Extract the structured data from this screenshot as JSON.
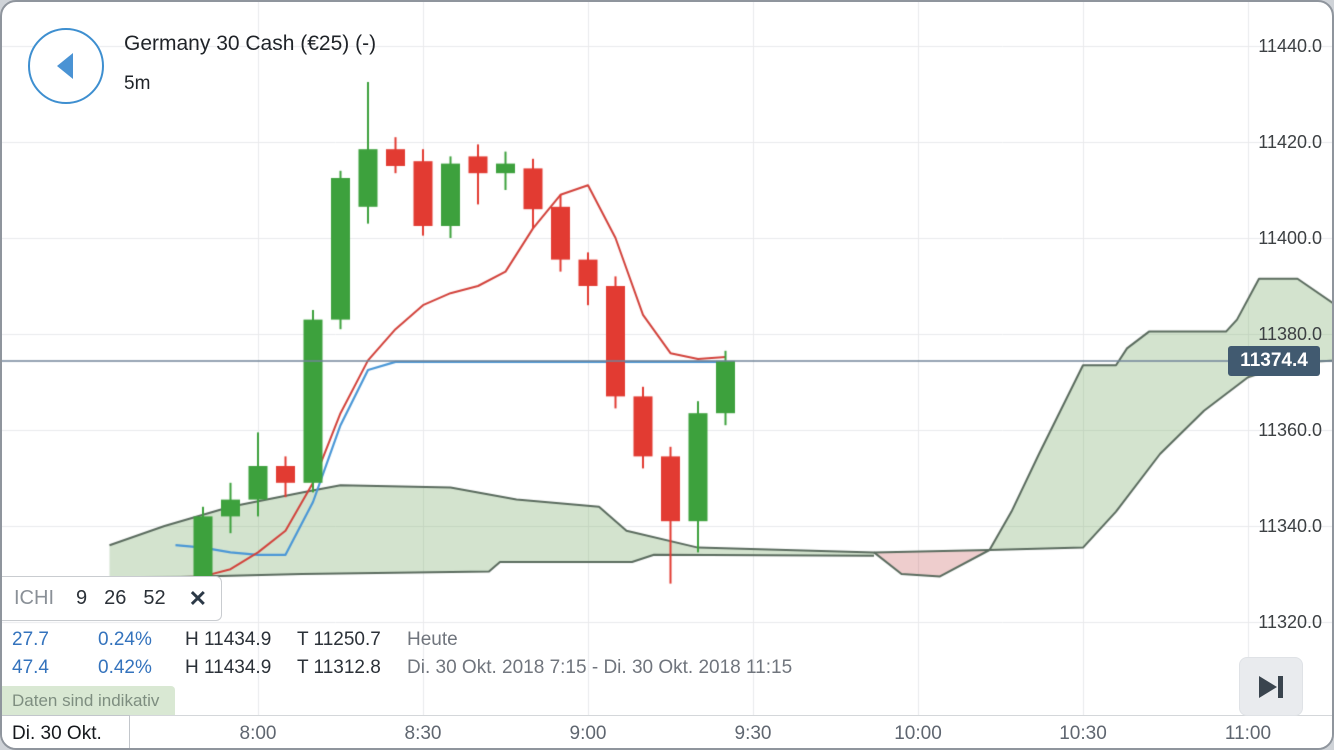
{
  "header": {
    "title": "Germany 30 Cash (€25) (-)",
    "timeframe": "5m"
  },
  "legend": {
    "indicator": "ICHI",
    "params": [
      "9",
      "26",
      "52"
    ],
    "close_label": "✕"
  },
  "stats": {
    "rows": [
      {
        "change": "27.7",
        "change_pct": "0.24%",
        "high": "H 11434.9",
        "low": "T 11250.7",
        "period": "Heute"
      },
      {
        "change": "47.4",
        "change_pct": "0.42%",
        "high": "H 11434.9",
        "low": "T 11312.8",
        "period": "Di. 30 Okt. 2018 7:15 - Di. 30 Okt. 2018 11:15"
      }
    ]
  },
  "disclaimer": "Daten sind indikativ",
  "price_axis": {
    "labels": [
      "11440.0",
      "11420.0",
      "11400.0",
      "11380.0",
      "11360.0",
      "11340.0",
      "11320.0"
    ]
  },
  "time_axis": {
    "date_label": "Di. 30 Okt.",
    "labels": [
      "8:00",
      "8:30",
      "9:00",
      "9:30",
      "10:00",
      "10:30",
      "11:00"
    ]
  },
  "current_price": {
    "label": "11374.4"
  },
  "chart_data": {
    "type": "candlestick",
    "title": "Germany 30 Cash (€25)",
    "interval": "5m",
    "current_price": 11374.4,
    "price_ticks": [
      11440,
      11420,
      11400,
      11380,
      11360,
      11340,
      11320
    ],
    "time_ticks": [
      "8:00",
      "8:30",
      "9:00",
      "9:30",
      "10:00",
      "10:30",
      "11:00"
    ],
    "candles": [
      {
        "t": "7:50",
        "o": 11326.5,
        "h": 11344.0,
        "l": 11323.5,
        "c": 11342.0
      },
      {
        "t": "7:55",
        "o": 11342.0,
        "h": 11349.0,
        "l": 11338.5,
        "c": 11345.5
      },
      {
        "t": "8:00",
        "o": 11345.5,
        "h": 11359.5,
        "l": 11342.0,
        "c": 11352.5
      },
      {
        "t": "8:05",
        "o": 11352.5,
        "h": 11354.5,
        "l": 11346.0,
        "c": 11349.0
      },
      {
        "t": "8:10",
        "o": 11349.0,
        "h": 11385.0,
        "l": 11347.0,
        "c": 11383.0
      },
      {
        "t": "8:15",
        "o": 11383.0,
        "h": 11414.0,
        "l": 11381.0,
        "c": 11412.5
      },
      {
        "t": "8:20",
        "o": 11406.5,
        "h": 11432.5,
        "l": 11403.0,
        "c": 11418.5
      },
      {
        "t": "8:25",
        "o": 11418.5,
        "h": 11421.0,
        "l": 11413.5,
        "c": 11415.0
      },
      {
        "t": "8:30",
        "o": 11416.0,
        "h": 11418.5,
        "l": 11400.5,
        "c": 11402.5
      },
      {
        "t": "8:35",
        "o": 11402.5,
        "h": 11417.0,
        "l": 11400.0,
        "c": 11415.5
      },
      {
        "t": "8:40",
        "o": 11417.0,
        "h": 11419.5,
        "l": 11407.0,
        "c": 11413.5
      },
      {
        "t": "8:45",
        "o": 11413.5,
        "h": 11418.0,
        "l": 11410.0,
        "c": 11415.5
      },
      {
        "t": "8:50",
        "o": 11414.5,
        "h": 11416.5,
        "l": 11402.0,
        "c": 11406.0
      },
      {
        "t": "8:55",
        "o": 11406.5,
        "h": 11409.0,
        "l": 11393.0,
        "c": 11395.5
      },
      {
        "t": "9:00",
        "o": 11395.5,
        "h": 11397.0,
        "l": 11386.0,
        "c": 11390.0
      },
      {
        "t": "9:05",
        "o": 11390.0,
        "h": 11392.0,
        "l": 11364.5,
        "c": 11367.0
      },
      {
        "t": "9:10",
        "o": 11367.0,
        "h": 11369.0,
        "l": 11352.0,
        "c": 11354.5
      },
      {
        "t": "9:15",
        "o": 11354.5,
        "h": 11356.5,
        "l": 11328.0,
        "c": 11341.0
      },
      {
        "t": "9:20",
        "o": 11341.0,
        "h": 11366.0,
        "l": 11334.5,
        "c": 11363.5
      },
      {
        "t": "9:25",
        "o": 11363.5,
        "h": 11376.5,
        "l": 11361.0,
        "c": 11374.4
      }
    ],
    "indicator": {
      "name": "Ichimoku",
      "params": [
        9,
        26,
        52
      ],
      "tenkan": [
        [
          "7:45",
          11329.0
        ],
        [
          "7:50",
          11329.5
        ],
        [
          "7:55",
          11331.0
        ],
        [
          "8:00",
          11334.5
        ],
        [
          "8:05",
          11339.0
        ],
        [
          "8:10",
          11349.0
        ],
        [
          "8:15",
          11363.5
        ],
        [
          "8:20",
          11374.5
        ],
        [
          "8:25",
          11381.0
        ],
        [
          "8:30",
          11386.0
        ],
        [
          "8:35",
          11388.5
        ],
        [
          "8:40",
          11390.0
        ],
        [
          "8:45",
          11393.0
        ],
        [
          "8:50",
          11402.0
        ],
        [
          "8:55",
          11409.0
        ],
        [
          "9:00",
          11411.0
        ],
        [
          "9:05",
          11400.0
        ],
        [
          "9:10",
          11384.0
        ],
        [
          "9:15",
          11376.0
        ],
        [
          "9:20",
          11374.8
        ],
        [
          "9:25",
          11375.2
        ]
      ],
      "kijun": [
        [
          "7:45",
          11336.0
        ],
        [
          "7:50",
          11335.5
        ],
        [
          "7:55",
          11334.5
        ],
        [
          "8:00",
          11334.0
        ],
        [
          "8:05",
          11334.0
        ],
        [
          "8:10",
          11345.0
        ],
        [
          "8:15",
          11361.0
        ],
        [
          "8:20",
          11372.5
        ],
        [
          "8:25",
          11374.2
        ],
        [
          "9:25",
          11374.2
        ]
      ],
      "cloud_segments": [
        {
          "color": "green",
          "top": [
            [
              "7:33",
              11336.0
            ],
            [
              "7:43",
              11340.0
            ],
            [
              "7:55",
              11344.0
            ],
            [
              "8:08",
              11347.0
            ],
            [
              "8:15",
              11348.5
            ],
            [
              "8:35",
              11348.0
            ],
            [
              "8:47",
              11345.5
            ],
            [
              "9:02",
              11344.0
            ],
            [
              "9:07",
              11339.0
            ],
            [
              "9:20",
              11335.5
            ],
            [
              "9:52",
              11334.5
            ]
          ],
          "bottom": [
            [
              "7:33",
              11329.0
            ],
            [
              "8:08",
              11330.0
            ],
            [
              "8:42",
              11330.5
            ],
            [
              "8:44",
              11332.5
            ],
            [
              "9:08",
              11332.5
            ],
            [
              "9:12",
              11334.0
            ],
            [
              "9:52",
              11333.8
            ]
          ]
        },
        {
          "color": "red",
          "top": [
            [
              "9:52",
              11334.5
            ],
            [
              "10:13",
              11335.0
            ]
          ],
          "bottom": [
            [
              "9:52",
              11334.5
            ],
            [
              "9:57",
              11330.0
            ],
            [
              "10:04",
              11329.5
            ],
            [
              "10:13",
              11335.0
            ]
          ]
        },
        {
          "color": "green",
          "top": [
            [
              "10:13",
              11335.0
            ],
            [
              "10:17",
              11343.0
            ],
            [
              "10:22",
              11355.0
            ],
            [
              "10:30",
              11373.5
            ],
            [
              "10:36",
              11373.5
            ],
            [
              "10:38",
              11377.0
            ],
            [
              "10:42",
              11380.5
            ],
            [
              "10:56",
              11380.5
            ],
            [
              "10:58",
              11383.0
            ],
            [
              "11:02",
              11391.5
            ],
            [
              "11:09",
              11391.5
            ],
            [
              "11:16",
              11386.0
            ]
          ],
          "bottom": [
            [
              "10:13",
              11335.0
            ],
            [
              "10:30",
              11335.5
            ],
            [
              "10:36",
              11343.0
            ],
            [
              "10:44",
              11355.0
            ],
            [
              "10:52",
              11364.0
            ],
            [
              "11:00",
              11371.0
            ],
            [
              "11:08",
              11374.0
            ],
            [
              "11:16",
              11374.5
            ]
          ]
        }
      ]
    },
    "colors": {
      "up": "#3da13d",
      "down": "#e23b32",
      "tenkan": "#d2423b",
      "kijun": "#4a97d6",
      "cloud_green": "rgba(130,175,115,0.35)",
      "cloud_red": "rgba(200,90,90,0.30)",
      "cloud_border": "#5a6b5e",
      "price_line": "#708599",
      "grid": "#e9eaec",
      "badge_bg": "#415a70",
      "accent_blue": "#3e8fd0"
    }
  }
}
